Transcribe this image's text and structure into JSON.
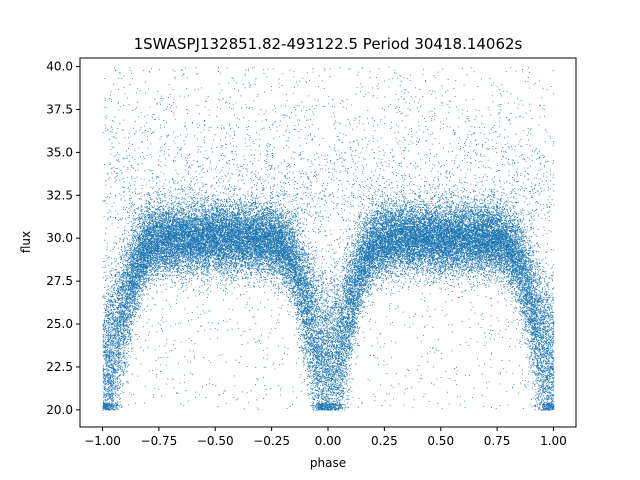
{
  "chart_data": {
    "type": "scatter",
    "title": "1SWASPJ132851.82-493122.5 Period 30418.14062s",
    "xlabel": "phase",
    "ylabel": "flux",
    "xlim": [
      -1.1,
      1.1
    ],
    "ylim": [
      19.0,
      40.5
    ],
    "x_ticks": [
      -1.0,
      -0.75,
      -0.5,
      -0.25,
      0.0,
      0.25,
      0.5,
      0.75,
      1.0
    ],
    "x_tick_labels": [
      "−1.00",
      "−0.75",
      "−0.50",
      "−0.25",
      "0.00",
      "0.25",
      "0.50",
      "0.75",
      "1.00"
    ],
    "y_ticks": [
      20.0,
      22.5,
      25.0,
      27.5,
      30.0,
      32.5,
      35.0,
      37.5,
      40.0
    ],
    "y_tick_labels": [
      "20.0",
      "22.5",
      "25.0",
      "27.5",
      "30.0",
      "32.5",
      "35.0",
      "37.5",
      "40.0"
    ],
    "grid": false,
    "point_color": "#1f77b4",
    "phase_range": [
      -1.0,
      1.0
    ],
    "baseline_flux": 30.0,
    "baseline_scatter": 1.0,
    "flux_range": [
      20.0,
      40.0
    ],
    "eclipses": [
      {
        "phase": -1.0,
        "min_flux": 20.0
      },
      {
        "phase": 0.0,
        "min_flux": 20.0
      },
      {
        "phase": 1.0,
        "min_flux": 20.0
      }
    ]
  }
}
